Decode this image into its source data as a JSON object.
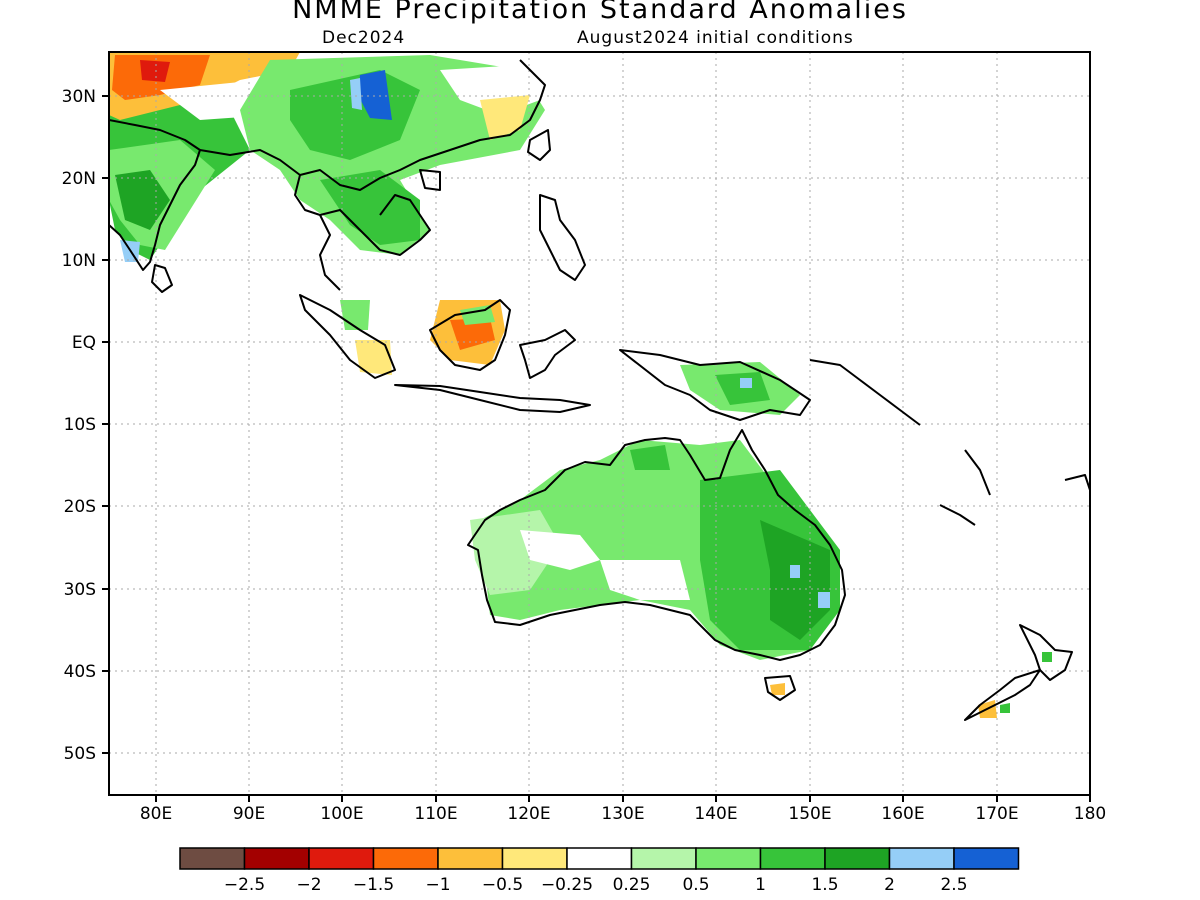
{
  "title": "NMME Precipitation Standard Anomalies",
  "lead": "Dec2024",
  "initial": "August2024 initial conditions",
  "map": {
    "lon_range": [
      75,
      180
    ],
    "lat_range": [
      -55,
      35
    ],
    "lon_ticks": [
      "80E",
      "90E",
      "100E",
      "110E",
      "120E",
      "130E",
      "140E",
      "150E",
      "160E",
      "170E",
      "180"
    ],
    "lat_ticks": [
      "30N",
      "20N",
      "10N",
      "EQ",
      "10S",
      "20S",
      "30S",
      "40S",
      "50S"
    ],
    "grid": true
  },
  "colorbar": {
    "colors": [
      "#6e4c42",
      "#a30000",
      "#df1a0d",
      "#fc6a08",
      "#fdbf3a",
      "#ffe87a",
      "#ffffff",
      "#b5f5aa",
      "#78e96e",
      "#37c43a",
      "#1ea424",
      "#95cef7",
      "#1561d4"
    ],
    "labels": [
      "−2.5",
      "−2",
      "−1.5",
      "−1",
      "−0.5",
      "−0.25",
      "0.25",
      "0.5",
      "1",
      "1.5",
      "2",
      "2.5"
    ]
  }
}
